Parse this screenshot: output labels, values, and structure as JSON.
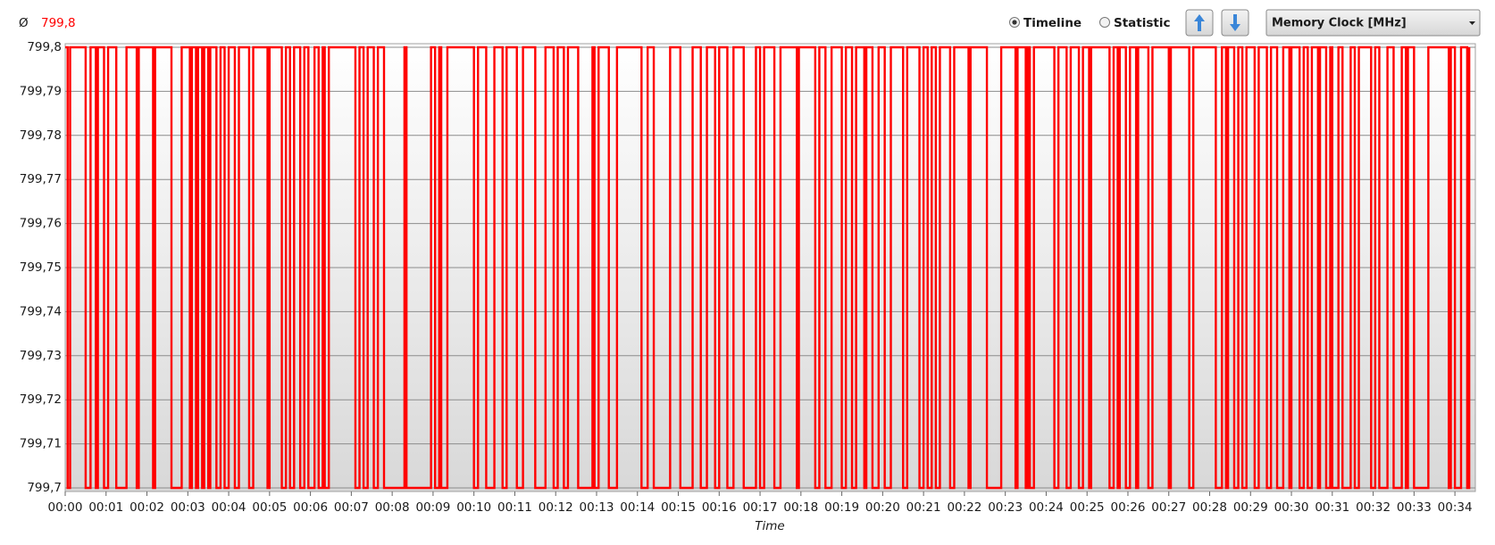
{
  "toolbar": {
    "average_symbol": "Ø",
    "average": "799,8",
    "view_options": [
      "Timeline",
      "Statistic"
    ],
    "selected_view_index": 0,
    "metric": "Memory Clock [MHz]"
  },
  "chart_data": {
    "type": "line",
    "drawstyle": "steps-post",
    "xlabel": "Time",
    "grid": true,
    "xlim": [
      0,
      34.5
    ],
    "ylim": [
      799.7,
      799.8
    ],
    "xticks": [
      {
        "value": 0,
        "label": "00:00"
      },
      {
        "value": 1,
        "label": "00:01"
      },
      {
        "value": 2,
        "label": "00:02"
      },
      {
        "value": 3,
        "label": "00:03"
      },
      {
        "value": 4,
        "label": "00:04"
      },
      {
        "value": 5,
        "label": "00:05"
      },
      {
        "value": 6,
        "label": "00:06"
      },
      {
        "value": 7,
        "label": "00:07"
      },
      {
        "value": 8,
        "label": "00:08"
      },
      {
        "value": 9,
        "label": "00:09"
      },
      {
        "value": 10,
        "label": "00:10"
      },
      {
        "value": 11,
        "label": "00:11"
      },
      {
        "value": 12,
        "label": "00:12"
      },
      {
        "value": 13,
        "label": "00:13"
      },
      {
        "value": 14,
        "label": "00:14"
      },
      {
        "value": 15,
        "label": "00:15"
      },
      {
        "value": 16,
        "label": "00:16"
      },
      {
        "value": 17,
        "label": "00:17"
      },
      {
        "value": 18,
        "label": "00:18"
      },
      {
        "value": 19,
        "label": "00:19"
      },
      {
        "value": 20,
        "label": "00:20"
      },
      {
        "value": 21,
        "label": "00:21"
      },
      {
        "value": 22,
        "label": "00:22"
      },
      {
        "value": 23,
        "label": "00:23"
      },
      {
        "value": 24,
        "label": "00:24"
      },
      {
        "value": 25,
        "label": "00:25"
      },
      {
        "value": 26,
        "label": "00:26"
      },
      {
        "value": 27,
        "label": "00:27"
      },
      {
        "value": 28,
        "label": "00:28"
      },
      {
        "value": 29,
        "label": "00:29"
      },
      {
        "value": 30,
        "label": "00:30"
      },
      {
        "value": 31,
        "label": "00:31"
      },
      {
        "value": 32,
        "label": "00:32"
      },
      {
        "value": 33,
        "label": "00:33"
      },
      {
        "value": 34,
        "label": "00:34"
      }
    ],
    "yticks": [
      {
        "value": 799.7,
        "label": "799,7"
      },
      {
        "value": 799.71,
        "label": "799,71"
      },
      {
        "value": 799.72,
        "label": "799,72"
      },
      {
        "value": 799.73,
        "label": "799,73"
      },
      {
        "value": 799.74,
        "label": "799,74"
      },
      {
        "value": 799.75,
        "label": "799,75"
      },
      {
        "value": 799.76,
        "label": "799,76"
      },
      {
        "value": 799.77,
        "label": "799,77"
      },
      {
        "value": 799.78,
        "label": "799,78"
      },
      {
        "value": 799.79,
        "label": "799,79"
      },
      {
        "value": 799.8,
        "label": "799,8"
      }
    ],
    "x": [
      0.0,
      0.06,
      0.12,
      0.5,
      0.62,
      0.75,
      0.8,
      0.95,
      1.05,
      1.25,
      1.5,
      1.75,
      1.8,
      2.15,
      2.2,
      2.6,
      2.85,
      3.05,
      3.1,
      3.2,
      3.25,
      3.35,
      3.4,
      3.5,
      3.55,
      3.7,
      3.8,
      3.9,
      4.0,
      4.15,
      4.25,
      4.5,
      4.6,
      4.95,
      5.0,
      5.3,
      5.4,
      5.5,
      5.6,
      5.75,
      5.85,
      5.95,
      6.1,
      6.2,
      6.3,
      6.35,
      6.45,
      7.1,
      7.2,
      7.3,
      7.4,
      7.55,
      7.65,
      7.8,
      8.3,
      8.35,
      8.95,
      9.05,
      9.15,
      9.2,
      9.35,
      10.0,
      10.1,
      10.3,
      10.5,
      10.7,
      10.8,
      11.05,
      11.2,
      11.5,
      11.75,
      11.95,
      12.05,
      12.2,
      12.3,
      12.55,
      12.9,
      12.95,
      13.05,
      13.3,
      13.5,
      14.1,
      14.25,
      14.4,
      14.8,
      15.05,
      15.35,
      15.55,
      15.7,
      15.9,
      16.0,
      16.2,
      16.35,
      16.6,
      16.9,
      17.0,
      17.1,
      17.35,
      17.5,
      17.9,
      17.95,
      18.35,
      18.45,
      18.6,
      18.75,
      19.0,
      19.1,
      19.25,
      19.35,
      19.55,
      19.6,
      19.75,
      19.9,
      20.05,
      20.2,
      20.5,
      20.6,
      20.9,
      21.0,
      21.1,
      21.2,
      21.3,
      21.4,
      21.65,
      21.75,
      22.1,
      22.15,
      22.55,
      22.9,
      23.25,
      23.3,
      23.5,
      23.55,
      23.6,
      23.7,
      24.2,
      24.3,
      24.5,
      24.6,
      24.8,
      24.9,
      25.05,
      25.1,
      25.55,
      25.65,
      25.75,
      25.8,
      25.95,
      26.05,
      26.2,
      26.25,
      26.5,
      26.6,
      27.0,
      27.05,
      27.5,
      27.6,
      28.15,
      28.3,
      28.4,
      28.45,
      28.6,
      28.7,
      28.8,
      28.9,
      29.1,
      29.2,
      29.4,
      29.5,
      29.65,
      29.8,
      29.95,
      30.0,
      30.2,
      30.3,
      30.4,
      30.5,
      30.65,
      30.7,
      30.85,
      30.95,
      31.0,
      31.15,
      31.25,
      31.45,
      31.55,
      31.65,
      31.95,
      32.05,
      32.15,
      32.35,
      32.5,
      32.7,
      32.8,
      32.85,
      33.0,
      33.35,
      33.85,
      33.9,
      34.0,
      34.15,
      34.3,
      34.35
    ],
    "series": [
      {
        "color": "#ff0000",
        "values": [
          799.8,
          799.7,
          799.8,
          799.7,
          799.8,
          799.7,
          799.8,
          799.7,
          799.8,
          799.7,
          799.8,
          799.7,
          799.8,
          799.7,
          799.8,
          799.7,
          799.8,
          799.7,
          799.8,
          799.7,
          799.8,
          799.7,
          799.8,
          799.7,
          799.8,
          799.7,
          799.8,
          799.7,
          799.8,
          799.7,
          799.8,
          799.7,
          799.8,
          799.7,
          799.8,
          799.7,
          799.8,
          799.7,
          799.8,
          799.7,
          799.8,
          799.7,
          799.8,
          799.7,
          799.8,
          799.7,
          799.8,
          799.7,
          799.8,
          799.7,
          799.8,
          799.7,
          799.8,
          799.7,
          799.8,
          799.7,
          799.8,
          799.7,
          799.8,
          799.7,
          799.8,
          799.7,
          799.8,
          799.7,
          799.8,
          799.7,
          799.8,
          799.7,
          799.8,
          799.7,
          799.8,
          799.7,
          799.8,
          799.7,
          799.8,
          799.7,
          799.8,
          799.7,
          799.8,
          799.7,
          799.8,
          799.7,
          799.8,
          799.7,
          799.8,
          799.7,
          799.8,
          799.7,
          799.8,
          799.7,
          799.8,
          799.7,
          799.8,
          799.7,
          799.8,
          799.7,
          799.8,
          799.7,
          799.8,
          799.7,
          799.8,
          799.7,
          799.8,
          799.7,
          799.8,
          799.7,
          799.8,
          799.7,
          799.8,
          799.7,
          799.8,
          799.7,
          799.8,
          799.7,
          799.8,
          799.7,
          799.8,
          799.7,
          799.8,
          799.7,
          799.8,
          799.7,
          799.8,
          799.7,
          799.8,
          799.7,
          799.8,
          799.7,
          799.8,
          799.7,
          799.8,
          799.7,
          799.8,
          799.7,
          799.8,
          799.7,
          799.8,
          799.7,
          799.8,
          799.7,
          799.8,
          799.7,
          799.8,
          799.7,
          799.8,
          799.7,
          799.8,
          799.7,
          799.8,
          799.7,
          799.8,
          799.7,
          799.8,
          799.7,
          799.8,
          799.7,
          799.8,
          799.7,
          799.8,
          799.7,
          799.8,
          799.7,
          799.8,
          799.7,
          799.8,
          799.7,
          799.8,
          799.7,
          799.8,
          799.7,
          799.8,
          799.7,
          799.8,
          799.7,
          799.8,
          799.7,
          799.8,
          799.7,
          799.8,
          799.7,
          799.8,
          799.7,
          799.8,
          799.7,
          799.8,
          799.7,
          799.8,
          799.7,
          799.8,
          799.7,
          799.8,
          799.7,
          799.8,
          799.7,
          799.8,
          799.7,
          799.8,
          799.7,
          799.8,
          799.7,
          799.8,
          799.7,
          799.8
        ]
      }
    ]
  }
}
